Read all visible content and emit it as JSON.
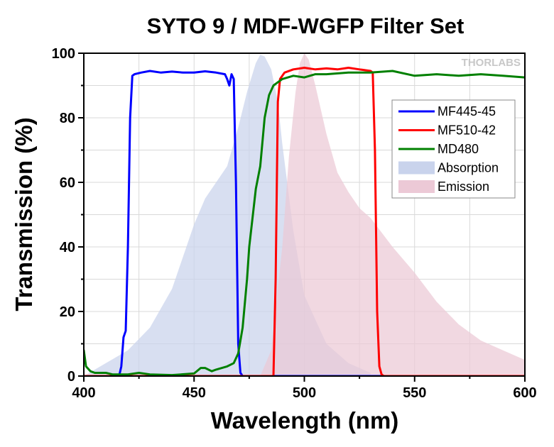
{
  "chart_data": {
    "type": "line",
    "title": "SYTO 9 / MDF-WGFP Filter Set",
    "xlabel": "Wavelength (nm)",
    "ylabel": "Transmission (%)",
    "xlim": [
      400,
      600
    ],
    "ylim": [
      0,
      100
    ],
    "x_ticks": [
      400,
      450,
      500,
      550,
      600
    ],
    "y_ticks": [
      0,
      20,
      40,
      60,
      80,
      100
    ],
    "grid": true,
    "legend_position": "top-right",
    "watermark": "THORLABS",
    "series": [
      {
        "name": "MF445-45",
        "kind": "line",
        "color": "#0000ff",
        "x": [
          400,
          416,
          417,
          418,
          419,
          420,
          421,
          422,
          423,
          426,
          430,
          435,
          440,
          445,
          450,
          455,
          460,
          464,
          465,
          466,
          467,
          468,
          469,
          470,
          471,
          472,
          480,
          520,
          600
        ],
        "y": [
          0,
          0,
          3,
          12,
          14,
          40,
          80,
          93,
          93.5,
          94,
          94.5,
          94,
          94.3,
          94,
          94,
          94.4,
          94,
          93.5,
          92,
          90,
          93.5,
          92,
          60,
          10,
          1,
          0,
          0,
          0,
          0
        ]
      },
      {
        "name": "MF510-42",
        "kind": "line",
        "color": "#ff0000",
        "x": [
          400,
          486,
          487,
          488,
          489,
          491,
          495,
          500,
          505,
          510,
          515,
          520,
          525,
          530,
          531,
          532,
          533,
          534,
          535,
          536,
          600
        ],
        "y": [
          0,
          0,
          30,
          85,
          92,
          94,
          95,
          95.5,
          95,
          95.3,
          95,
          95.5,
          95,
          94.5,
          94,
          70,
          20,
          3,
          0.5,
          0,
          0
        ]
      },
      {
        "name": "MD480",
        "kind": "line",
        "color": "#008000",
        "x": [
          400,
          401,
          403,
          405,
          410,
          413,
          420,
          425,
          430,
          440,
          450,
          453,
          455,
          458,
          460,
          465,
          468,
          470,
          472,
          474,
          475,
          477,
          478,
          480,
          482,
          484,
          486,
          488,
          490,
          495,
          500,
          505,
          510,
          520,
          530,
          540,
          550,
          560,
          570,
          580,
          590,
          600
        ],
        "y": [
          8,
          3,
          1.5,
          1,
          1,
          0.5,
          0.5,
          1,
          0.5,
          0.3,
          0.8,
          2.5,
          2.5,
          1.5,
          2,
          3,
          4,
          7,
          15,
          30,
          40,
          52,
          58,
          65,
          80,
          87,
          90,
          91,
          92,
          93,
          92.5,
          93.5,
          93.5,
          94,
          94,
          94.5,
          93,
          93.5,
          93,
          93.5,
          93,
          92.5
        ]
      },
      {
        "name": "Absorption",
        "kind": "area",
        "color": "#c9d3ec",
        "x": [
          400,
          410,
          420,
          430,
          440,
          450,
          455,
          460,
          465,
          470,
          474,
          478,
          480,
          482,
          485,
          488,
          490,
          495,
          500,
          510,
          520,
          530
        ],
        "y": [
          0,
          4,
          8,
          15,
          27,
          47,
          55,
          60,
          65,
          77,
          88,
          97,
          99.5,
          99,
          95,
          85,
          72,
          45,
          25,
          10,
          4,
          1
        ]
      },
      {
        "name": "Emission",
        "kind": "area",
        "color": "#ecc9d6",
        "x": [
          480,
          485,
          490,
          493,
          496,
          498,
          500,
          502,
          505,
          510,
          515,
          520,
          525,
          530,
          540,
          550,
          560,
          570,
          580,
          590,
          600
        ],
        "y": [
          0,
          8,
          40,
          68,
          88,
          97,
          100,
          98,
          90,
          75,
          63,
          57,
          52,
          49,
          40,
          32,
          23,
          16,
          11,
          8,
          5
        ]
      }
    ]
  }
}
